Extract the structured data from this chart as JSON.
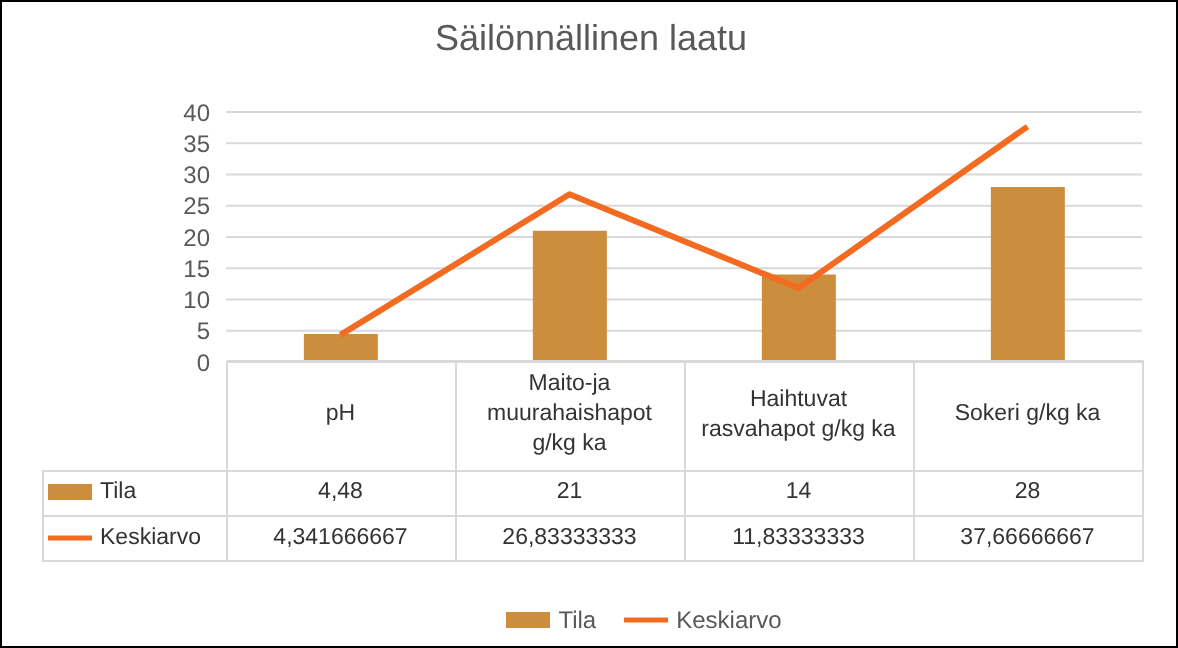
{
  "chart_data": {
    "type": "bar",
    "title": "Säilönnällinen laatu",
    "categories": [
      "pH",
      "Maito-ja muurahaishapot g/kg ka",
      "Haihtuvat rasvahapot g/kg ka",
      "Sokeri g/kg ka"
    ],
    "series": [
      {
        "name": "Tila",
        "color": "#cc8e3c",
        "values": [
          4.48,
          21,
          14,
          28
        ],
        "value_labels": [
          "4,48",
          "21",
          "14",
          "28"
        ]
      },
      {
        "name": "Keskiarvo",
        "type": "line",
        "color": "#f26b21",
        "values": [
          4.341666667,
          26.83333333,
          11.83333333,
          37.66666667
        ],
        "value_labels": [
          "4,341666667",
          "26,83333333",
          "11,83333333",
          "37,66666667"
        ]
      }
    ],
    "ylim": [
      0,
      40
    ],
    "yticks": [
      0,
      5,
      10,
      15,
      20,
      25,
      30,
      35,
      40
    ],
    "grid": "y",
    "legend": "bottom",
    "marker": "none",
    "line_style": "solid"
  }
}
